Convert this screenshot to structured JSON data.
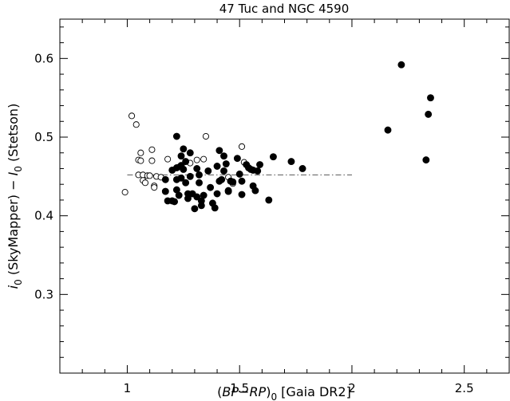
{
  "chart_data": {
    "type": "scatter",
    "title": "47 Tuc and NGC 4590",
    "xlabel": "(BP−RP)0 [Gaia DR2]",
    "ylabel": "i0 (SkyMapper) − I0 (Stetson)",
    "xlim": [
      0.7,
      2.7
    ],
    "ylim": [
      0.2,
      0.65
    ],
    "x_ticks": [
      "1",
      "1.5",
      "2",
      "2.5"
    ],
    "y_ticks": [
      "0.3",
      "0.4",
      "0.5",
      "0.6"
    ],
    "grid": false,
    "series": [
      {
        "marker": "open-circle",
        "points": [
          [
            0.99,
            0.43
          ],
          [
            1.02,
            0.527
          ],
          [
            1.04,
            0.516
          ],
          [
            1.05,
            0.471
          ],
          [
            1.05,
            0.452
          ],
          [
            1.06,
            0.48
          ],
          [
            1.06,
            0.47
          ],
          [
            1.07,
            0.452
          ],
          [
            1.07,
            0.445
          ],
          [
            1.08,
            0.442
          ],
          [
            1.09,
            0.451
          ],
          [
            1.1,
            0.451
          ],
          [
            1.11,
            0.484
          ],
          [
            1.11,
            0.47
          ],
          [
            1.12,
            0.438
          ],
          [
            1.12,
            0.436
          ],
          [
            1.13,
            0.45
          ],
          [
            1.15,
            0.449
          ],
          [
            1.18,
            0.472
          ],
          [
            1.23,
            0.462
          ],
          [
            1.28,
            0.467
          ],
          [
            1.31,
            0.471
          ],
          [
            1.34,
            0.472
          ],
          [
            1.35,
            0.501
          ],
          [
            1.45,
            0.449
          ],
          [
            1.47,
            0.441
          ],
          [
            1.51,
            0.488
          ],
          [
            1.52,
            0.468
          ]
        ]
      },
      {
        "marker": "filled-circle",
        "points": [
          [
            1.17,
            0.446
          ],
          [
            1.17,
            0.431
          ],
          [
            1.18,
            0.419
          ],
          [
            1.2,
            0.419
          ],
          [
            1.2,
            0.458
          ],
          [
            1.21,
            0.418
          ],
          [
            1.22,
            0.501
          ],
          [
            1.22,
            0.461
          ],
          [
            1.22,
            0.446
          ],
          [
            1.22,
            0.433
          ],
          [
            1.23,
            0.426
          ],
          [
            1.24,
            0.476
          ],
          [
            1.24,
            0.464
          ],
          [
            1.24,
            0.448
          ],
          [
            1.25,
            0.485
          ],
          [
            1.25,
            0.459
          ],
          [
            1.26,
            0.469
          ],
          [
            1.26,
            0.442
          ],
          [
            1.27,
            0.428
          ],
          [
            1.27,
            0.422
          ],
          [
            1.28,
            0.48
          ],
          [
            1.28,
            0.45
          ],
          [
            1.29,
            0.428
          ],
          [
            1.3,
            0.409
          ],
          [
            1.31,
            0.46
          ],
          [
            1.31,
            0.424
          ],
          [
            1.32,
            0.452
          ],
          [
            1.32,
            0.442
          ],
          [
            1.33,
            0.419
          ],
          [
            1.33,
            0.413
          ],
          [
            1.34,
            0.426
          ],
          [
            1.36,
            0.457
          ],
          [
            1.37,
            0.436
          ],
          [
            1.38,
            0.416
          ],
          [
            1.39,
            0.41
          ],
          [
            1.4,
            0.463
          ],
          [
            1.4,
            0.428
          ],
          [
            1.41,
            0.444
          ],
          [
            1.41,
            0.483
          ],
          [
            1.42,
            0.446
          ],
          [
            1.43,
            0.476
          ],
          [
            1.43,
            0.457
          ],
          [
            1.44,
            0.466
          ],
          [
            1.45,
            0.432
          ],
          [
            1.45,
            0.431
          ],
          [
            1.46,
            0.444
          ],
          [
            1.47,
            0.443
          ],
          [
            1.49,
            0.473
          ],
          [
            1.5,
            0.453
          ],
          [
            1.51,
            0.444
          ],
          [
            1.51,
            0.427
          ],
          [
            1.53,
            0.465
          ],
          [
            1.54,
            0.461
          ],
          [
            1.55,
            0.459
          ],
          [
            1.56,
            0.458
          ],
          [
            1.56,
            0.438
          ],
          [
            1.57,
            0.432
          ],
          [
            1.58,
            0.457
          ],
          [
            1.59,
            0.465
          ],
          [
            1.63,
            0.42
          ],
          [
            1.65,
            0.475
          ],
          [
            1.73,
            0.469
          ],
          [
            1.78,
            0.46
          ],
          [
            2.16,
            0.509
          ],
          [
            2.22,
            0.592
          ],
          [
            2.33,
            0.471
          ],
          [
            2.34,
            0.529
          ],
          [
            2.35,
            0.55
          ]
        ]
      }
    ],
    "reference_line": {
      "style": "dash-dot",
      "x_range": [
        1.0,
        2.0
      ],
      "y": 0.452
    }
  }
}
